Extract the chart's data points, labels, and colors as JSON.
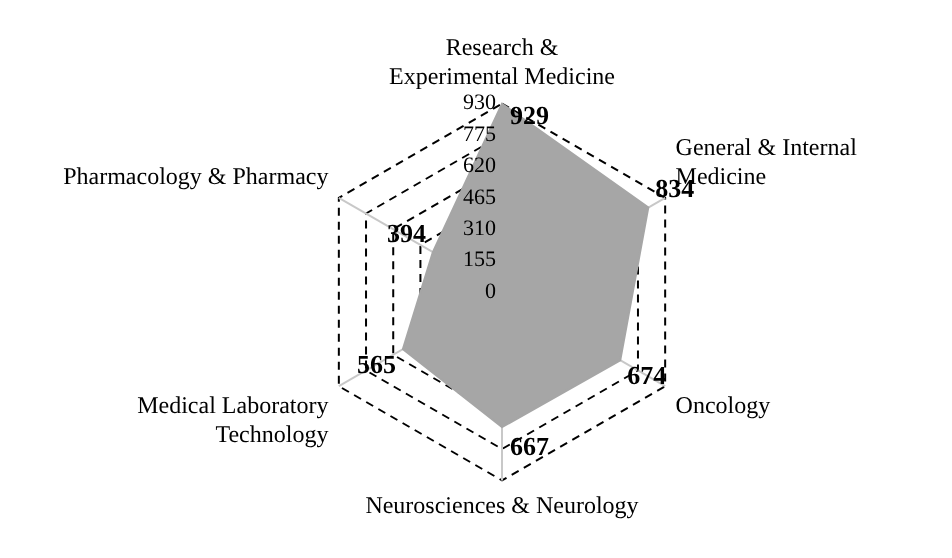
{
  "chart_data": {
    "type": "radar",
    "categories": [
      "Research & Experimental Medicine",
      "General & Internal Medicine",
      "Oncology",
      "Neurosciences & Neurology",
      "Medical Laboratory Technology",
      "Pharmacology & Pharmacy"
    ],
    "series": [
      {
        "color": "#a6a6a6",
        "values": [
          929,
          834,
          674,
          667,
          565,
          394
        ]
      }
    ],
    "ylim": [
      0,
      930
    ],
    "yticks": [
      0,
      155,
      310,
      465,
      620,
      775,
      930
    ],
    "grid": true,
    "data_labels": true,
    "marker": "none"
  }
}
